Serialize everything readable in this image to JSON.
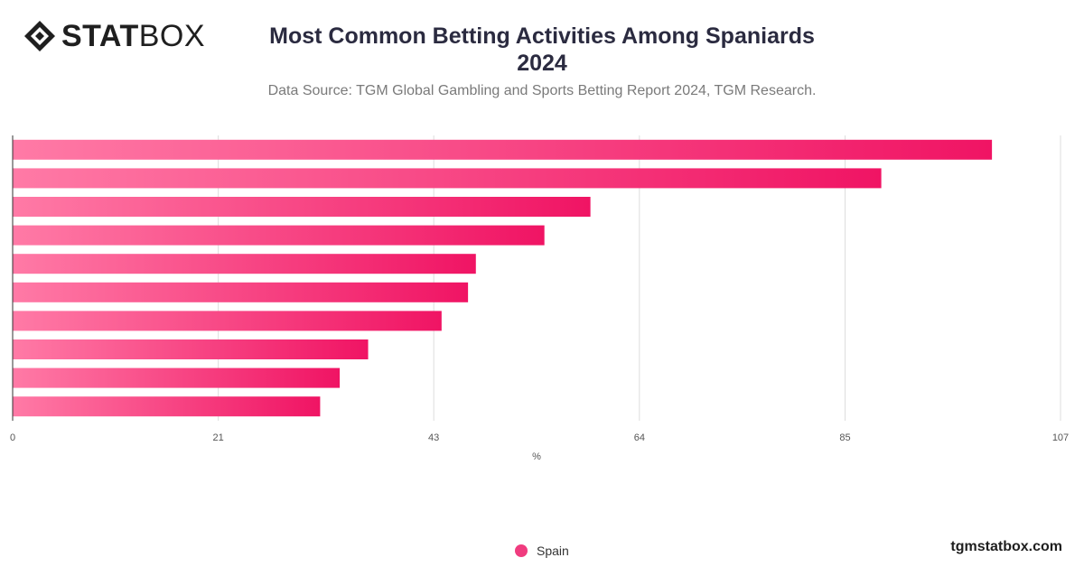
{
  "brand": {
    "logo_bold": "STAT",
    "logo_light": "BOX",
    "website": "tgmstatbox.com"
  },
  "header": {
    "title_line1": "Most Common Betting Activities Among Spaniards",
    "title_line2": "2024",
    "subtitle": "Data Source: TGM Global Gambling and Sports Betting Report 2024, TGM Research."
  },
  "colors": {
    "bar_start": "#ff7aa6",
    "bar_end": "#f01464",
    "grid": "#dddddd",
    "axis": "#333333"
  },
  "chart_data": {
    "type": "bar",
    "orientation": "horizontal",
    "title": "Most Common Betting Activities Among Spaniards 2024",
    "xlabel": "%",
    "ylabel": "",
    "xlim": [
      0,
      107
    ],
    "xticks": [
      0,
      21,
      43,
      64,
      85,
      107
    ],
    "grid": true,
    "legend_position": "bottom",
    "series": [
      {
        "name": "Spain",
        "values": [
          100,
          88.7,
          59,
          54.3,
          47.3,
          46.5,
          43.8,
          36.3,
          33.4,
          31.4
        ]
      }
    ]
  }
}
